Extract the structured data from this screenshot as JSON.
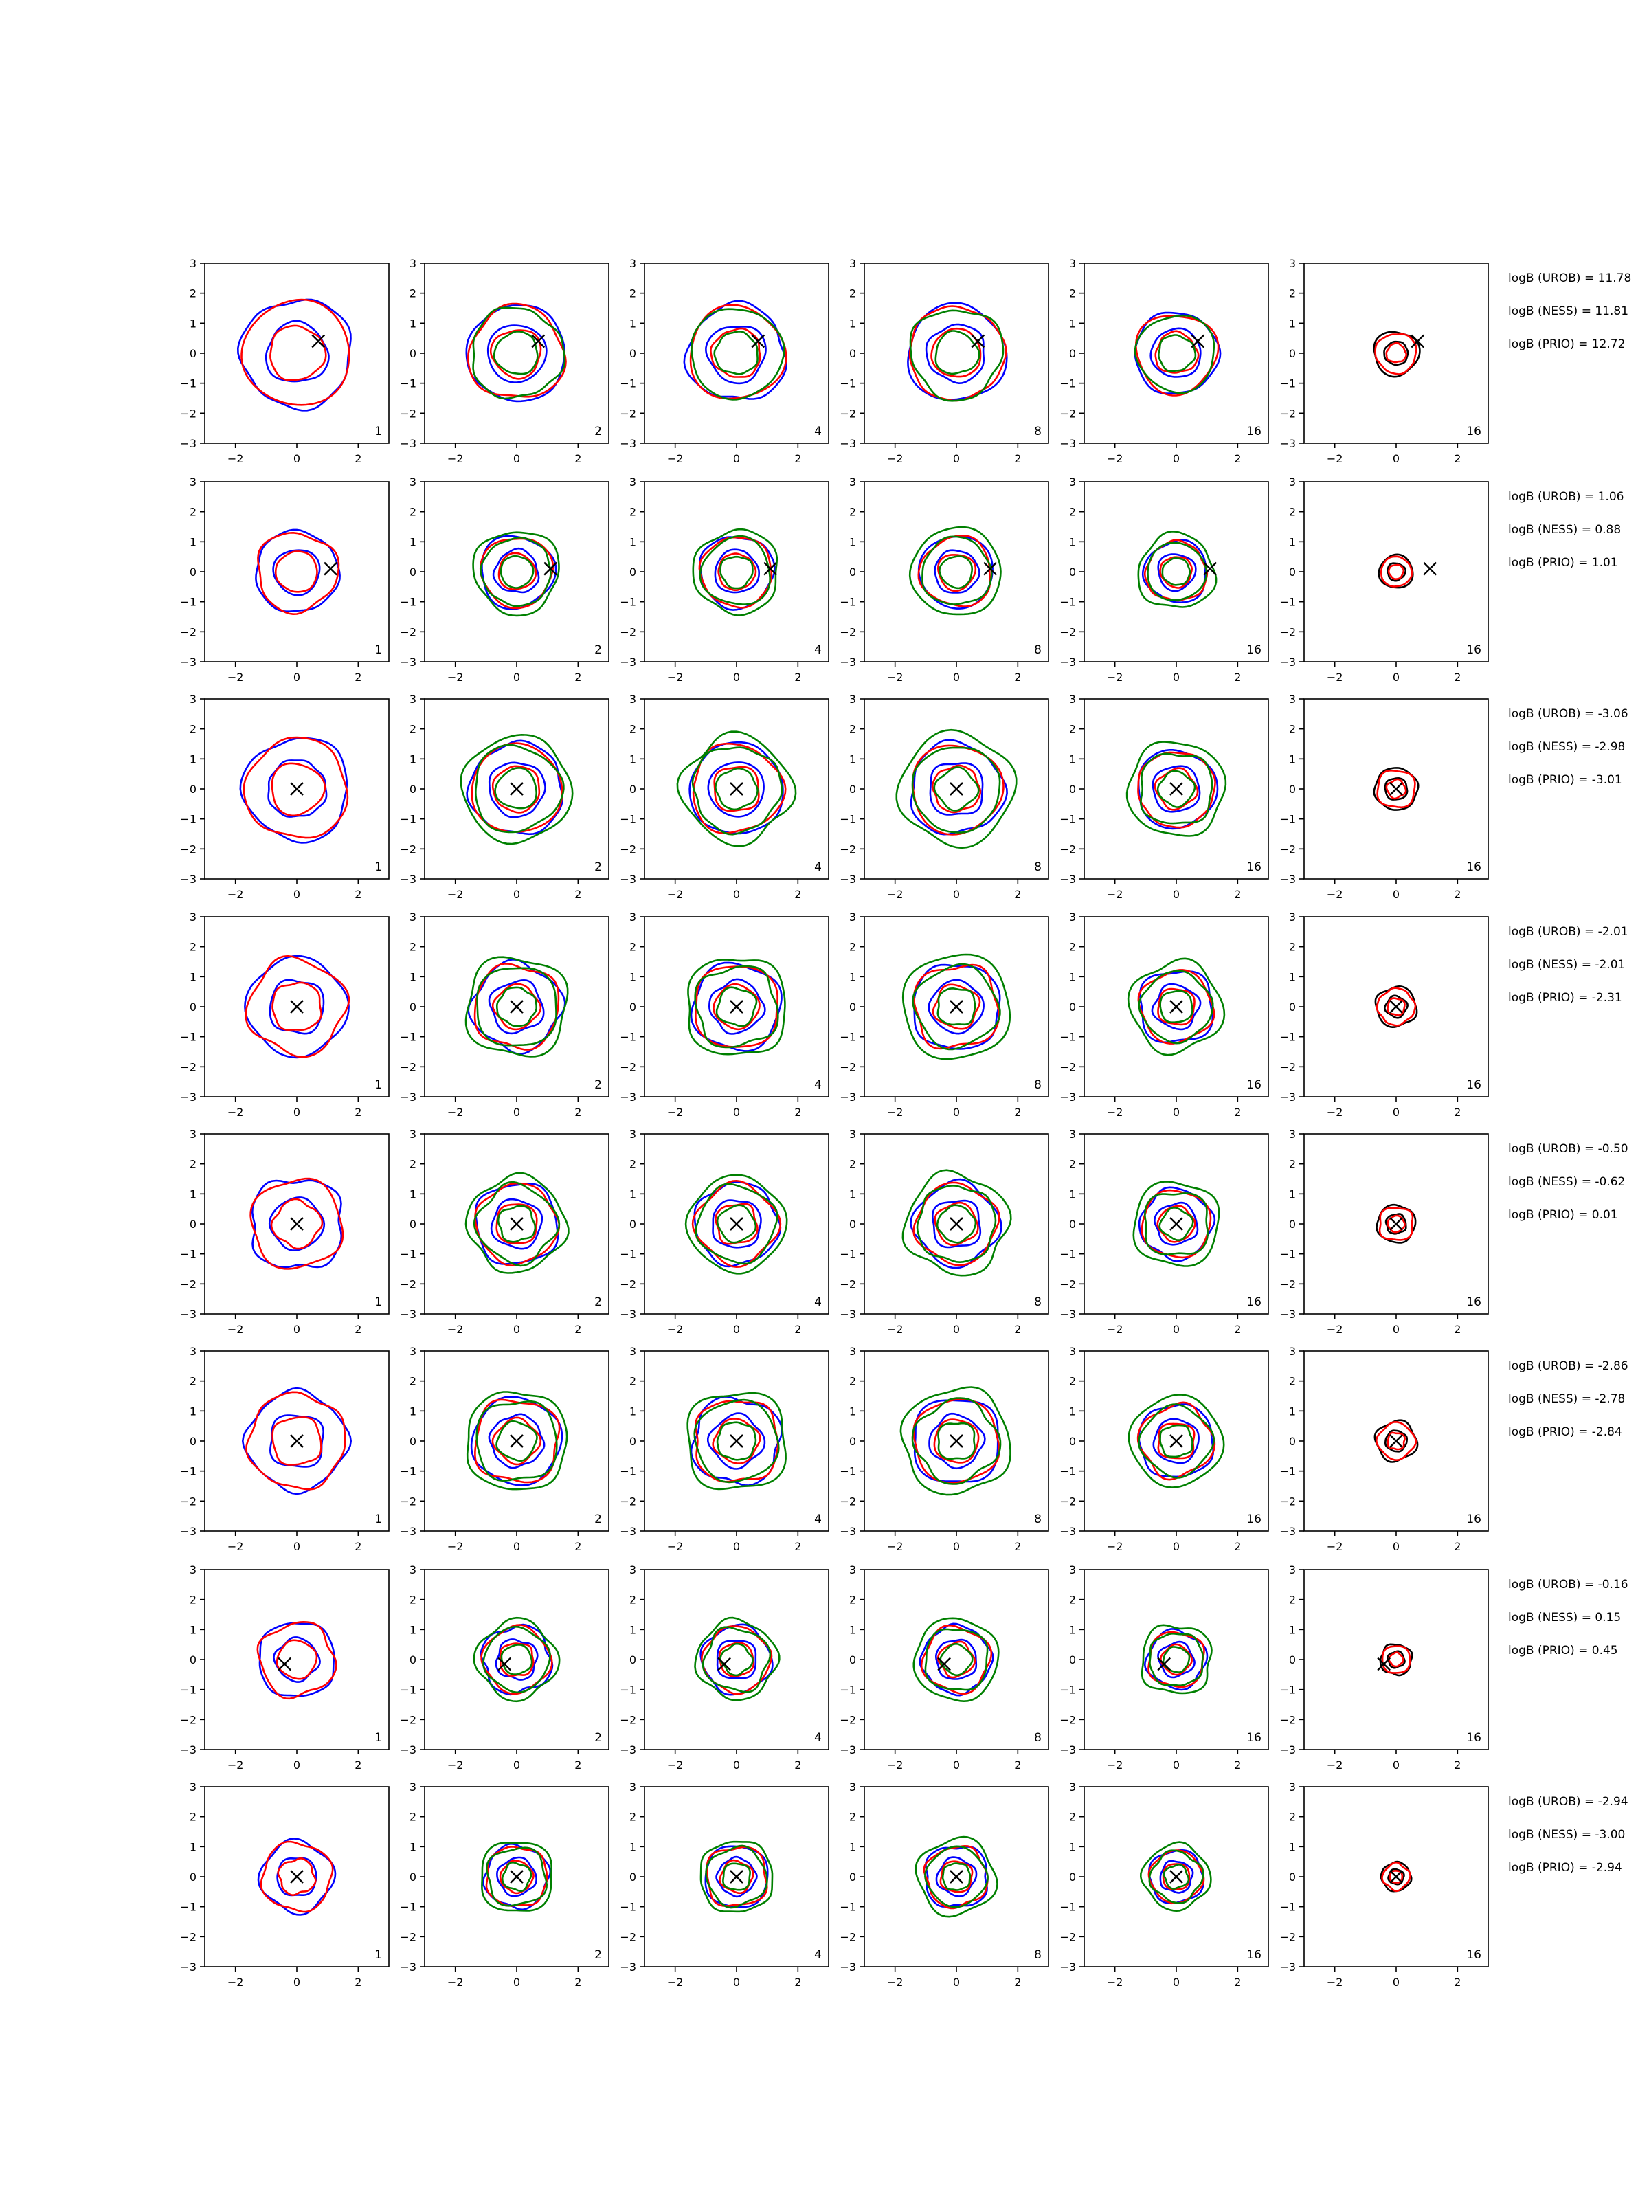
{
  "figure": {
    "type": "contour-grid",
    "rows": 8,
    "columns": 6,
    "xlim": [
      -3,
      3
    ],
    "ylim": [
      -3,
      3
    ],
    "xticks": [
      "−2",
      "0",
      "2"
    ],
    "yticks": [
      "3",
      "2",
      "1",
      "0",
      "−1",
      "−2",
      "−3"
    ],
    "panel_labels": [
      "1",
      "2",
      "4",
      "8",
      "16",
      "16"
    ],
    "colors": {
      "blue": "#0000ff",
      "red": "#ff0000",
      "green": "#008000",
      "black": "#000000",
      "axes": "#000000"
    }
  },
  "chart_data": [
    {
      "row": 1,
      "marker": [
        0.7,
        0.4
      ],
      "scale": 1.0,
      "green_outer": false,
      "logB": [
        "logB (UROB) = 11.78",
        "logB (NESS) = 11.81",
        "logB (PRIO) = 12.72"
      ]
    },
    {
      "row": 2,
      "marker": [
        1.1,
        0.1
      ],
      "scale": 0.75,
      "green_outer": true,
      "logB": [
        "logB (UROB) = 1.06",
        "logB (NESS) = 0.88",
        "logB (PRIO) = 1.01"
      ]
    },
    {
      "row": 3,
      "marker": [
        0.0,
        0.0
      ],
      "scale": 0.95,
      "green_outer": true,
      "logB": [
        "logB (UROB) = -3.06",
        "logB (NESS) = -2.98",
        "logB (PRIO) = -3.01"
      ]
    },
    {
      "row": 4,
      "marker": [
        0.0,
        0.0
      ],
      "scale": 0.9,
      "green_outer": true,
      "logB": [
        "logB (UROB) = -2.01",
        "logB (NESS) = -2.01",
        "logB (PRIO) = -2.31"
      ]
    },
    {
      "row": 5,
      "marker": [
        0.0,
        0.0
      ],
      "scale": 0.85,
      "green_outer": true,
      "logB": [
        "logB (UROB) = -0.50",
        "logB (NESS) = -0.62",
        "logB (PRIO) = 0.01"
      ]
    },
    {
      "row": 6,
      "marker": [
        0.0,
        0.0
      ],
      "scale": 0.9,
      "green_outer": true,
      "logB": [
        "logB (UROB) = -2.86",
        "logB (NESS) = -2.78",
        "logB (PRIO) = -2.84"
      ]
    },
    {
      "row": 7,
      "marker": [
        -0.4,
        -0.15
      ],
      "scale": 0.7,
      "green_outer": true,
      "logB": [
        "logB (UROB) = -0.16",
        "logB (NESS) = 0.15",
        "logB (PRIO) = 0.45"
      ]
    },
    {
      "row": 8,
      "marker": [
        0.0,
        0.0
      ],
      "scale": 0.65,
      "green_outer": true,
      "logB": [
        "logB (UROB) = -2.94",
        "logB (NESS) = -3.00",
        "logB (PRIO) = -2.94"
      ]
    }
  ]
}
